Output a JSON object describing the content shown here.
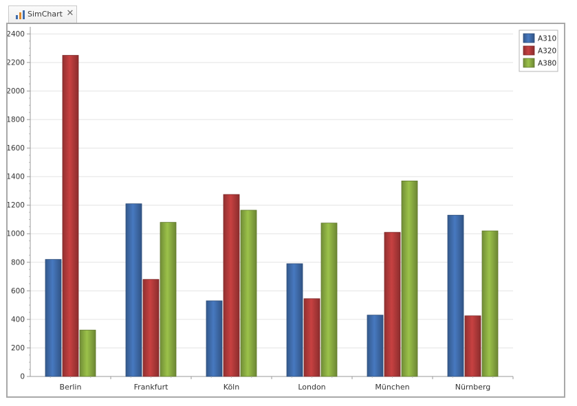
{
  "tab": {
    "label": "SimChart",
    "close_glyph": "✕",
    "icon": "bar-chart-icon"
  },
  "colors": {
    "A310": "#3f6cab",
    "A320": "#b23a3a",
    "A380": "#8aac42"
  },
  "chart_data": {
    "type": "bar",
    "categories": [
      "Berlin",
      "Frankfurt",
      "Köln",
      "London",
      "München",
      "Nürnberg"
    ],
    "series": [
      {
        "name": "A310",
        "values": [
          820,
          1210,
          530,
          790,
          430,
          1130
        ]
      },
      {
        "name": "A320",
        "values": [
          2250,
          680,
          1275,
          545,
          1010,
          425
        ]
      },
      {
        "name": "A380",
        "values": [
          325,
          1080,
          1165,
          1075,
          1370,
          1020
        ]
      }
    ],
    "yticks": [
      0,
      200,
      400,
      600,
      800,
      1000,
      1200,
      1400,
      1600,
      1800,
      2000,
      2200,
      2400
    ],
    "ylim": [
      0,
      2450
    ],
    "title": "",
    "xlabel": "",
    "ylabel": "",
    "grid": true,
    "legend": "top-right"
  }
}
